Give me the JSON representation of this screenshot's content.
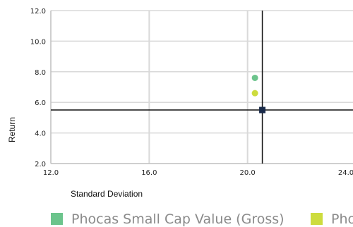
{
  "chart_data": {
    "type": "scatter",
    "xlabel": "Standard Deviation",
    "ylabel": "Return",
    "xlim": [
      12.0,
      24.0
    ],
    "ylim": [
      2.0,
      12.0
    ],
    "x_ticks": [
      "12.0",
      "16.0",
      "20.0",
      "24.0"
    ],
    "y_ticks": [
      "2.0",
      "4.0",
      "6.0",
      "8.0",
      "10.0",
      "12.0"
    ],
    "grid": true,
    "legend_position": "bottom",
    "series": [
      {
        "name": "Phocas Small Cap Value (Gross)",
        "x": 20.3,
        "y": 7.6,
        "color": "#6cc48c",
        "marker": "circle"
      },
      {
        "name": "Pho",
        "x": 20.3,
        "y": 6.6,
        "color": "#cddc3e",
        "marker": "circle"
      },
      {
        "x": 20.6,
        "y": 5.5,
        "color": "#1a2b4a",
        "marker": "square"
      }
    ],
    "crosshair": {
      "x": 20.6,
      "y": 5.5,
      "color": "#111111"
    }
  }
}
